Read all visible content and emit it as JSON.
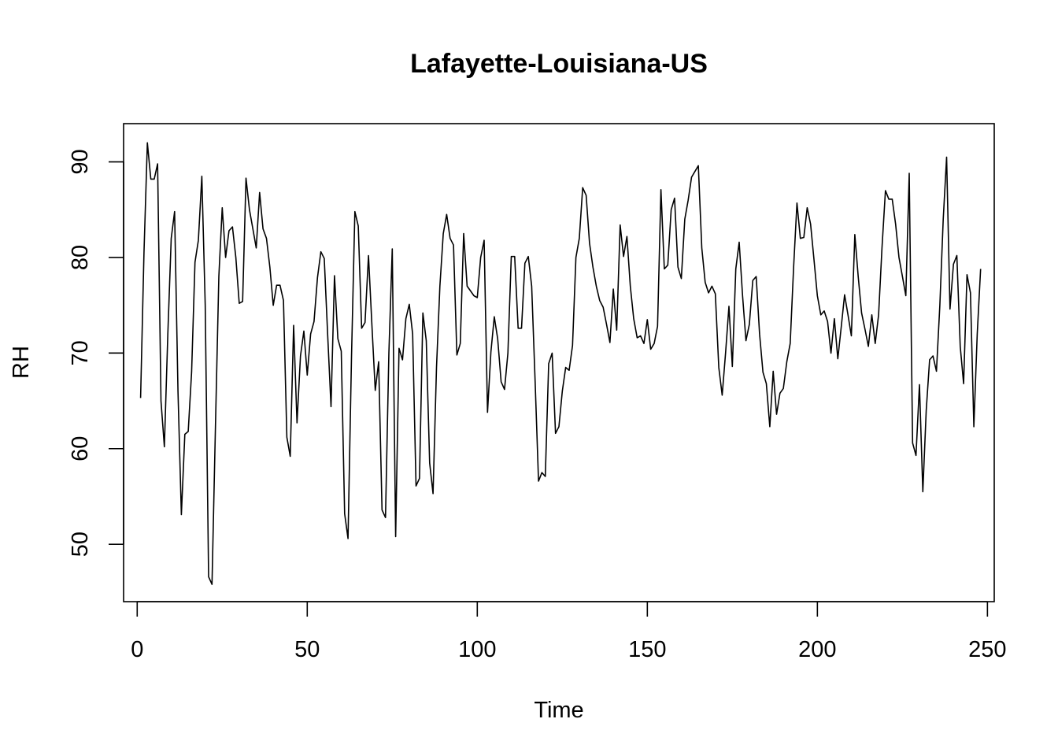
{
  "chart_data": {
    "type": "line",
    "title": "Lafayette-Louisiana-US",
    "xlabel": "Time",
    "ylabel": "RH",
    "xlim": [
      -4,
      252
    ],
    "ylim": [
      44,
      94
    ],
    "xticks": [
      0,
      50,
      100,
      150,
      200,
      250
    ],
    "yticks": [
      50,
      60,
      70,
      80,
      90
    ],
    "grid": false,
    "legend": "none",
    "line_color": "#000000",
    "series": [
      {
        "x": [
          1,
          2,
          3,
          4,
          5,
          6,
          7,
          8,
          9,
          10,
          11,
          12,
          13,
          14,
          15,
          16,
          17,
          18,
          19,
          20,
          21,
          22,
          23,
          24,
          25,
          26,
          27,
          28,
          29,
          30,
          31,
          32,
          33,
          34,
          35,
          36,
          37,
          38,
          39,
          40,
          41,
          42,
          43,
          44,
          45,
          46,
          47,
          48,
          49,
          50,
          51,
          52,
          53,
          54,
          55,
          56,
          57,
          58,
          59,
          60,
          61,
          62,
          63,
          64,
          65,
          66,
          67,
          68,
          69,
          70,
          71,
          72,
          73,
          74,
          75,
          76,
          77,
          78,
          79,
          80,
          81,
          82,
          83,
          84,
          85,
          86,
          87,
          88,
          89,
          90,
          91,
          92,
          93,
          94,
          95,
          96,
          97,
          98,
          99,
          100,
          101,
          102,
          103,
          104,
          105,
          106,
          107,
          108,
          109,
          110,
          111,
          112,
          113,
          114,
          115,
          116,
          117,
          118,
          119,
          120,
          121,
          122,
          123,
          124,
          125,
          126,
          127,
          128,
          129,
          130,
          131,
          132,
          133,
          134,
          135,
          136,
          137,
          138,
          139,
          140,
          141,
          142,
          143,
          144,
          145,
          146,
          147,
          148,
          149,
          150,
          151,
          152,
          153,
          154,
          155,
          156,
          157,
          158,
          159,
          160,
          161,
          162,
          163,
          164,
          165,
          166,
          167,
          168,
          169,
          170,
          171,
          172,
          173,
          174,
          175,
          176,
          177,
          178,
          179,
          180,
          181,
          182,
          183,
          184,
          185,
          186,
          187,
          188,
          189,
          190,
          191,
          192,
          193,
          194,
          195,
          196,
          197,
          198,
          199,
          200,
          201,
          202,
          203,
          204,
          205,
          206,
          207,
          208,
          209,
          210,
          211,
          212,
          213,
          214,
          215,
          216,
          217,
          218,
          219,
          220,
          221,
          222,
          223,
          224,
          225,
          226,
          227,
          228,
          229,
          230,
          231,
          232,
          233,
          234,
          235,
          236,
          237,
          238,
          239,
          240,
          241,
          242,
          243,
          244,
          245,
          246,
          247,
          248
        ],
        "values": [
          65.3,
          80.5,
          92.0,
          88.2,
          88.2,
          89.8,
          65.0,
          60.2,
          72.0,
          82.0,
          84.8,
          66.0,
          53.1,
          61.5,
          61.8,
          68.0,
          79.5,
          81.8,
          88.5,
          75.0,
          46.6,
          45.8,
          62.0,
          78.0,
          85.2,
          80.0,
          82.8,
          83.2,
          80.0,
          75.2,
          75.4,
          88.3,
          85.0,
          83.0,
          81.0,
          86.8,
          83.0,
          82.0,
          79.0,
          75.0,
          77.1,
          77.1,
          75.5,
          61.2,
          59.2,
          72.9,
          62.7,
          69.7,
          72.3,
          67.7,
          72.0,
          73.3,
          77.9,
          80.6,
          79.9,
          72.0,
          64.4,
          78.1,
          71.5,
          70.2,
          53.2,
          50.6,
          69.5,
          84.8,
          83.3,
          72.6,
          73.2,
          80.2,
          73.0,
          66.1,
          69.1,
          53.6,
          52.8,
          70.0,
          80.9,
          50.8,
          70.5,
          69.3,
          73.6,
          75.1,
          72.0,
          56.1,
          56.9,
          74.2,
          71.3,
          58.5,
          55.3,
          68.5,
          77.0,
          82.5,
          84.5,
          82.0,
          81.3,
          69.8,
          71.0,
          82.5,
          77.0,
          76.5,
          76.0,
          75.8,
          80.0,
          81.8,
          63.8,
          70.1,
          73.8,
          71.5,
          67.0,
          66.2,
          70.0,
          80.1,
          80.1,
          72.6,
          72.6,
          79.4,
          80.1,
          77.0,
          67.0,
          56.6,
          57.5,
          57.1,
          68.9,
          70.0,
          61.6,
          62.3,
          66.0,
          68.5,
          68.2,
          70.8,
          80.0,
          82.0,
          87.3,
          86.5,
          81.5,
          79.0,
          77.0,
          75.5,
          74.8,
          73.0,
          71.1,
          76.7,
          72.4,
          83.4,
          80.1,
          82.2,
          77.0,
          73.6,
          71.6,
          71.8,
          71.0,
          73.5,
          70.4,
          71.0,
          72.8,
          87.1,
          78.8,
          79.2,
          85.0,
          86.2,
          79.0,
          77.8,
          84.0,
          86.0,
          88.4,
          89.0,
          89.6,
          81.0,
          77.4,
          76.3,
          77.0,
          76.2,
          68.5,
          65.6,
          70.0,
          74.9,
          68.6,
          78.8,
          81.6,
          76.0,
          71.3,
          73.0,
          77.6,
          78.0,
          72.0,
          68.0,
          66.8,
          62.3,
          68.1,
          63.6,
          65.8,
          66.3,
          69.1,
          71.0,
          78.9,
          85.7,
          82.0,
          82.1,
          85.2,
          83.5,
          79.8,
          76.0,
          74.0,
          74.4,
          73.3,
          70.0,
          73.6,
          69.4,
          72.7,
          76.1,
          74.0,
          71.8,
          82.4,
          78.0,
          74.2,
          72.5,
          70.7,
          74.0,
          71.0,
          74.0,
          81.0,
          87.0,
          86.1,
          86.1,
          83.5,
          80.0,
          78.0,
          76.0,
          88.8,
          60.6,
          59.3,
          66.7,
          55.5,
          64.0,
          69.3,
          69.7,
          68.1,
          75.0,
          84.0,
          90.5,
          74.6,
          79.3,
          80.2,
          70.7,
          66.8,
          78.2,
          76.3,
          62.3,
          72.0,
          78.8
        ]
      }
    ]
  }
}
